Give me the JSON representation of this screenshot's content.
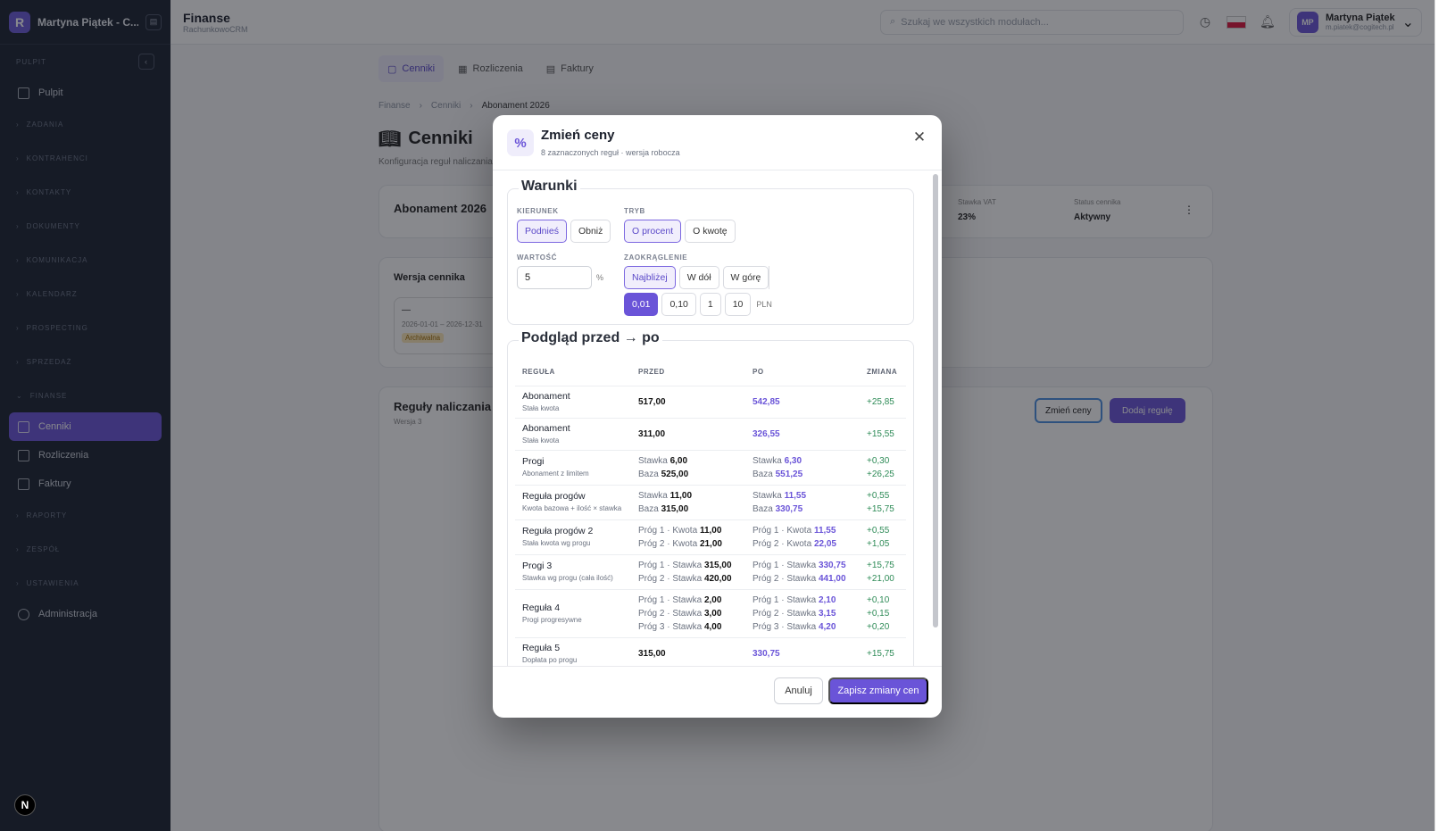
{
  "sidebar": {
    "title": "Martyna Piątek - C...",
    "section_label": "PULPIT",
    "items_top": [
      {
        "label": "Pulpit"
      }
    ],
    "groups": [
      "ZADANIA",
      "KONTRAHENCI",
      "KONTAKTY",
      "DOKUMENTY",
      "KOMUNIKACJA",
      "KALENDARZ",
      "PROSPECTING",
      "SPRZEDAŻ"
    ],
    "finance_group": "FINANSE",
    "finance_items": [
      {
        "label": "Cenniki",
        "active": true
      },
      {
        "label": "Rozliczenia"
      },
      {
        "label": "Faktury"
      }
    ],
    "groups_bottom": [
      "RAPORTY",
      "ZESPÓŁ",
      "USTAWIENIA"
    ],
    "admin_label": "Administracja",
    "badge": "N"
  },
  "topbar": {
    "title": "Finanse",
    "subtitle": "RachunkowoCRM",
    "search_placeholder": "Szukaj we wszystkich modułach...",
    "user_name": "Martyna Piątek",
    "user_email": "m.piatek@cogitech.pl",
    "user_initials": "MP"
  },
  "tabs": [
    {
      "label": "Cenniki"
    },
    {
      "label": "Rozliczenia"
    },
    {
      "label": "Faktury"
    }
  ],
  "breadcrumb": [
    "Finanse",
    "Cenniki",
    "Abonament 2026"
  ],
  "page": {
    "title": "Cenniki",
    "description": "Konfiguracja reguł naliczania",
    "card_title": "Abonament 2026",
    "vat_label": "Stawka VAT",
    "vat_value": "23%",
    "status_label": "Status cennika",
    "status_value": "Aktywny",
    "version_title": "Wersja cennika",
    "version_value": "—",
    "version_dates": "2026-01-01 – 2026-12-31",
    "version_badge": "Archiwalna",
    "rules_title": "Reguły naliczania",
    "rules_sub": "Wersja 3",
    "btn_change": "Zmień ceny",
    "btn_add": "Dodaj regułę"
  },
  "modal": {
    "title": "Zmień ceny",
    "subtitle": "8 zaznaczonych reguł · wersja robocza",
    "icon": "%",
    "conditions": {
      "legend": "Warunki",
      "direction_label": "KIERUNEK",
      "direction_options": [
        "Podnieś",
        "Obniż"
      ],
      "mode_label": "TRYB",
      "mode_options": [
        "O procent",
        "O kwotę"
      ],
      "value_label": "WARTOŚĆ",
      "value": "5",
      "value_unit": "%",
      "rounding_label": "ZAOKRĄGLENIE",
      "rounding_options": [
        "Najbliżej",
        "W dół",
        "W górę"
      ],
      "precision_options": [
        "0,01",
        "0,10",
        "1",
        "10"
      ],
      "precision_unit": "PLN"
    },
    "preview": {
      "legend": "Podgląd przed → po",
      "headers": [
        "REGUŁA",
        "PRZED",
        "PO",
        "ZMIANA"
      ],
      "rows": [
        {
          "name": "Abonament",
          "sub": "Stała kwota",
          "before": [
            {
              "l": "",
              "v": "517,00"
            }
          ],
          "after": [
            {
              "l": "",
              "v": "542,85"
            }
          ],
          "change": [
            "+25,85"
          ]
        },
        {
          "name": "Abonament",
          "sub": "Stała kwota",
          "before": [
            {
              "l": "",
              "v": "311,00"
            }
          ],
          "after": [
            {
              "l": "",
              "v": "326,55"
            }
          ],
          "change": [
            "+15,55"
          ]
        },
        {
          "name": "Progi",
          "sub": "Abonament z limitem",
          "before": [
            {
              "l": "Stawka",
              "v": "6,00"
            },
            {
              "l": "Baza",
              "v": "525,00"
            }
          ],
          "after": [
            {
              "l": "Stawka",
              "v": "6,30"
            },
            {
              "l": "Baza",
              "v": "551,25"
            }
          ],
          "change": [
            "+0,30",
            "+26,25"
          ]
        },
        {
          "name": "Reguła progów",
          "sub": "Kwota bazowa + ilość × stawka",
          "before": [
            {
              "l": "Stawka",
              "v": "11,00"
            },
            {
              "l": "Baza",
              "v": "315,00"
            }
          ],
          "after": [
            {
              "l": "Stawka",
              "v": "11,55"
            },
            {
              "l": "Baza",
              "v": "330,75"
            }
          ],
          "change": [
            "+0,55",
            "+15,75"
          ]
        },
        {
          "name": "Reguła progów 2",
          "sub": "Stała kwota wg progu",
          "before": [
            {
              "l": "Próg 1 · Kwota",
              "v": "11,00"
            },
            {
              "l": "Próg 2 · Kwota",
              "v": "21,00"
            }
          ],
          "after": [
            {
              "l": "Próg 1 · Kwota",
              "v": "11,55"
            },
            {
              "l": "Próg 2 · Kwota",
              "v": "22,05"
            }
          ],
          "change": [
            "+0,55",
            "+1,05"
          ]
        },
        {
          "name": "Progi 3",
          "sub": "Stawka wg progu (cała ilość)",
          "before": [
            {
              "l": "Próg 1 · Stawka",
              "v": "315,00"
            },
            {
              "l": "Próg 2 · Stawka",
              "v": "420,00"
            }
          ],
          "after": [
            {
              "l": "Próg 1 · Stawka",
              "v": "330,75"
            },
            {
              "l": "Próg 2 · Stawka",
              "v": "441,00"
            }
          ],
          "change": [
            "+15,75",
            "+21,00"
          ]
        },
        {
          "name": "Reguła 4",
          "sub": "Progi progresywne",
          "before": [
            {
              "l": "Próg 1 · Stawka",
              "v": "2,00"
            },
            {
              "l": "Próg 2 · Stawka",
              "v": "3,00"
            },
            {
              "l": "Próg 3 · Stawka",
              "v": "4,00"
            }
          ],
          "after": [
            {
              "l": "Próg 1 · Stawka",
              "v": "2,10"
            },
            {
              "l": "Próg 2 · Stawka",
              "v": "3,15"
            },
            {
              "l": "Próg 3 · Stawka",
              "v": "4,20"
            }
          ],
          "change": [
            "+0,10",
            "+0,15",
            "+0,20"
          ]
        },
        {
          "name": "Reguła 5",
          "sub": "Dopłata po progu",
          "before": [
            {
              "l": "",
              "v": "315,00"
            }
          ],
          "after": [
            {
              "l": "",
              "v": "330,75"
            }
          ],
          "change": [
            "+15,75"
          ]
        }
      ]
    },
    "cancel_label": "Anuluj",
    "save_label": "Zapisz zmiany cen"
  },
  "colors": {
    "accent": "#6a54d8",
    "sidebar": "#1b2230",
    "positive": "#2e8b57"
  }
}
